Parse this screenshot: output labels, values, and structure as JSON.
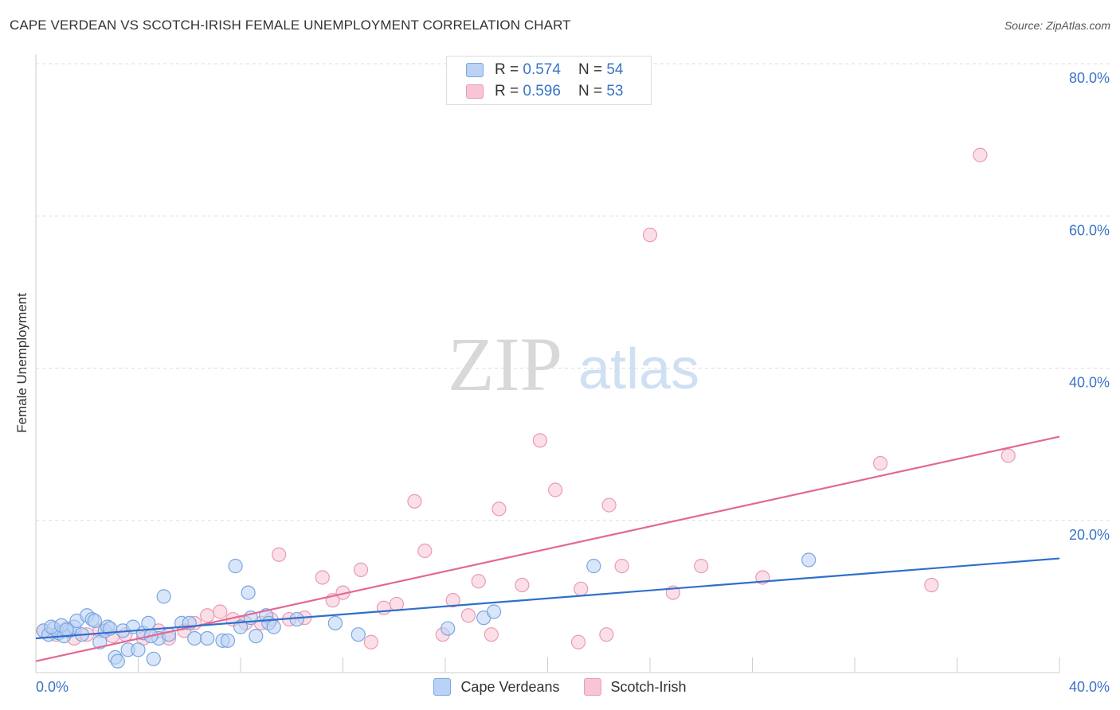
{
  "header": {
    "title": "CAPE VERDEAN VS SCOTCH-IRISH FEMALE UNEMPLOYMENT CORRELATION CHART",
    "source": "Source: ZipAtlas.com"
  },
  "legend": {
    "r_label": "R =",
    "n_label": "N =",
    "series": [
      {
        "name": "Cape Verdeans",
        "r": "0.574",
        "n": "54"
      },
      {
        "name": "Scotch-Irish",
        "r": "0.596",
        "n": "53"
      }
    ]
  },
  "watermark": {
    "zip": "ZIP",
    "atlas": "atlas"
  },
  "colors": {
    "blue_fill": "#b9d2f5",
    "blue_stroke": "#7aa6e0",
    "blue_line": "#2f6fcc",
    "pink_fill": "#f8c5d4",
    "pink_stroke": "#ea9ab3",
    "pink_line": "#e36892",
    "axis_text": "#3a74c6",
    "grid": "#dddddd"
  },
  "chart_data": {
    "type": "scatter",
    "title": "CAPE VERDEAN VS SCOTCH-IRISH FEMALE UNEMPLOYMENT CORRELATION CHART",
    "xlabel": "",
    "ylabel": "Female Unemployment",
    "xlim": [
      0,
      40
    ],
    "ylim": [
      0,
      80
    ],
    "x_tick_labels": [
      "0.0%",
      "40.0%"
    ],
    "y_ticks": [
      20,
      40,
      60,
      80
    ],
    "y_tick_labels": [
      "20.0%",
      "40.0%",
      "60.0%",
      "80.0%"
    ],
    "grid": true,
    "legend_position": "top-center",
    "series": [
      {
        "name": "Cape Verdeans",
        "r": 0.574,
        "n": 54,
        "trend": {
          "x": [
            0,
            40
          ],
          "y": [
            4.5,
            15.0
          ]
        },
        "points": [
          {
            "x": 0.3,
            "y": 5.5
          },
          {
            "x": 0.5,
            "y": 5.0
          },
          {
            "x": 0.7,
            "y": 5.8
          },
          {
            "x": 0.9,
            "y": 5.2
          },
          {
            "x": 1.1,
            "y": 4.8
          },
          {
            "x": 1.3,
            "y": 5.5
          },
          {
            "x": 1.5,
            "y": 6.0
          },
          {
            "x": 1.6,
            "y": 6.8
          },
          {
            "x": 1.8,
            "y": 5.0
          },
          {
            "x": 2.0,
            "y": 7.5
          },
          {
            "x": 2.2,
            "y": 7.0
          },
          {
            "x": 2.3,
            "y": 6.8
          },
          {
            "x": 2.5,
            "y": 4.0
          },
          {
            "x": 2.7,
            "y": 5.5
          },
          {
            "x": 2.8,
            "y": 6.0
          },
          {
            "x": 3.1,
            "y": 2.0
          },
          {
            "x": 3.2,
            "y": 1.5
          },
          {
            "x": 3.4,
            "y": 5.5
          },
          {
            "x": 3.6,
            "y": 3.0
          },
          {
            "x": 3.8,
            "y": 6.0
          },
          {
            "x": 4.0,
            "y": 3.0
          },
          {
            "x": 4.2,
            "y": 5.2
          },
          {
            "x": 4.4,
            "y": 6.5
          },
          {
            "x": 4.6,
            "y": 1.8
          },
          {
            "x": 4.8,
            "y": 4.5
          },
          {
            "x": 5.0,
            "y": 10.0
          },
          {
            "x": 5.2,
            "y": 5.0
          },
          {
            "x": 5.7,
            "y": 6.5
          },
          {
            "x": 6.0,
            "y": 6.5
          },
          {
            "x": 6.2,
            "y": 4.5
          },
          {
            "x": 6.7,
            "y": 4.5
          },
          {
            "x": 7.3,
            "y": 4.2
          },
          {
            "x": 7.5,
            "y": 4.2
          },
          {
            "x": 7.8,
            "y": 14.0
          },
          {
            "x": 8.0,
            "y": 6.0
          },
          {
            "x": 8.3,
            "y": 10.5
          },
          {
            "x": 8.6,
            "y": 4.8
          },
          {
            "x": 9.0,
            "y": 7.5
          },
          {
            "x": 9.1,
            "y": 6.5
          },
          {
            "x": 9.3,
            "y": 6.0
          },
          {
            "x": 10.2,
            "y": 7.0
          },
          {
            "x": 11.7,
            "y": 6.5
          },
          {
            "x": 12.6,
            "y": 5.0
          },
          {
            "x": 16.1,
            "y": 5.8
          },
          {
            "x": 17.5,
            "y": 7.2
          },
          {
            "x": 17.9,
            "y": 8.0
          },
          {
            "x": 21.8,
            "y": 14.0
          },
          {
            "x": 30.2,
            "y": 14.8
          },
          {
            "x": 0.6,
            "y": 6.0
          },
          {
            "x": 1.0,
            "y": 6.2
          },
          {
            "x": 1.2,
            "y": 5.6
          },
          {
            "x": 2.9,
            "y": 5.8
          },
          {
            "x": 4.5,
            "y": 4.8
          },
          {
            "x": 8.4,
            "y": 7.2
          }
        ]
      },
      {
        "name": "Scotch-Irish",
        "r": 0.596,
        "n": 53,
        "trend": {
          "x": [
            0,
            40
          ],
          "y": [
            1.5,
            31.0
          ]
        },
        "points": [
          {
            "x": 0.3,
            "y": 5.5
          },
          {
            "x": 0.8,
            "y": 5.0
          },
          {
            "x": 1.2,
            "y": 5.8
          },
          {
            "x": 1.5,
            "y": 4.5
          },
          {
            "x": 2.0,
            "y": 5.0
          },
          {
            "x": 2.5,
            "y": 5.5
          },
          {
            "x": 3.0,
            "y": 4.8
          },
          {
            "x": 3.5,
            "y": 5.0
          },
          {
            "x": 4.2,
            "y": 4.5
          },
          {
            "x": 4.8,
            "y": 5.5
          },
          {
            "x": 5.2,
            "y": 4.5
          },
          {
            "x": 5.8,
            "y": 5.5
          },
          {
            "x": 6.2,
            "y": 6.5
          },
          {
            "x": 6.7,
            "y": 7.5
          },
          {
            "x": 7.2,
            "y": 8.0
          },
          {
            "x": 7.7,
            "y": 7.0
          },
          {
            "x": 8.2,
            "y": 6.5
          },
          {
            "x": 8.8,
            "y": 6.5
          },
          {
            "x": 9.2,
            "y": 7.0
          },
          {
            "x": 9.5,
            "y": 15.5
          },
          {
            "x": 9.9,
            "y": 7.0
          },
          {
            "x": 10.5,
            "y": 7.2
          },
          {
            "x": 11.2,
            "y": 12.5
          },
          {
            "x": 11.6,
            "y": 9.5
          },
          {
            "x": 12.0,
            "y": 10.5
          },
          {
            "x": 12.7,
            "y": 13.5
          },
          {
            "x": 13.1,
            "y": 4.0
          },
          {
            "x": 13.6,
            "y": 8.5
          },
          {
            "x": 14.1,
            "y": 9.0
          },
          {
            "x": 14.8,
            "y": 22.5
          },
          {
            "x": 15.2,
            "y": 16.0
          },
          {
            "x": 15.9,
            "y": 5.0
          },
          {
            "x": 16.3,
            "y": 9.5
          },
          {
            "x": 16.9,
            "y": 7.5
          },
          {
            "x": 17.3,
            "y": 12.0
          },
          {
            "x": 17.8,
            "y": 5.0
          },
          {
            "x": 18.1,
            "y": 21.5
          },
          {
            "x": 19.0,
            "y": 11.5
          },
          {
            "x": 19.7,
            "y": 30.5
          },
          {
            "x": 20.3,
            "y": 24.0
          },
          {
            "x": 21.2,
            "y": 4.0
          },
          {
            "x": 21.3,
            "y": 11.0
          },
          {
            "x": 22.3,
            "y": 5.0
          },
          {
            "x": 22.4,
            "y": 22.0
          },
          {
            "x": 22.9,
            "y": 14.0
          },
          {
            "x": 24.9,
            "y": 10.5
          },
          {
            "x": 26.0,
            "y": 14.0
          },
          {
            "x": 28.4,
            "y": 12.5
          },
          {
            "x": 24.0,
            "y": 57.5
          },
          {
            "x": 36.9,
            "y": 68.0
          },
          {
            "x": 35.0,
            "y": 11.5
          },
          {
            "x": 33.0,
            "y": 27.5
          },
          {
            "x": 38.0,
            "y": 28.5
          }
        ]
      }
    ]
  }
}
